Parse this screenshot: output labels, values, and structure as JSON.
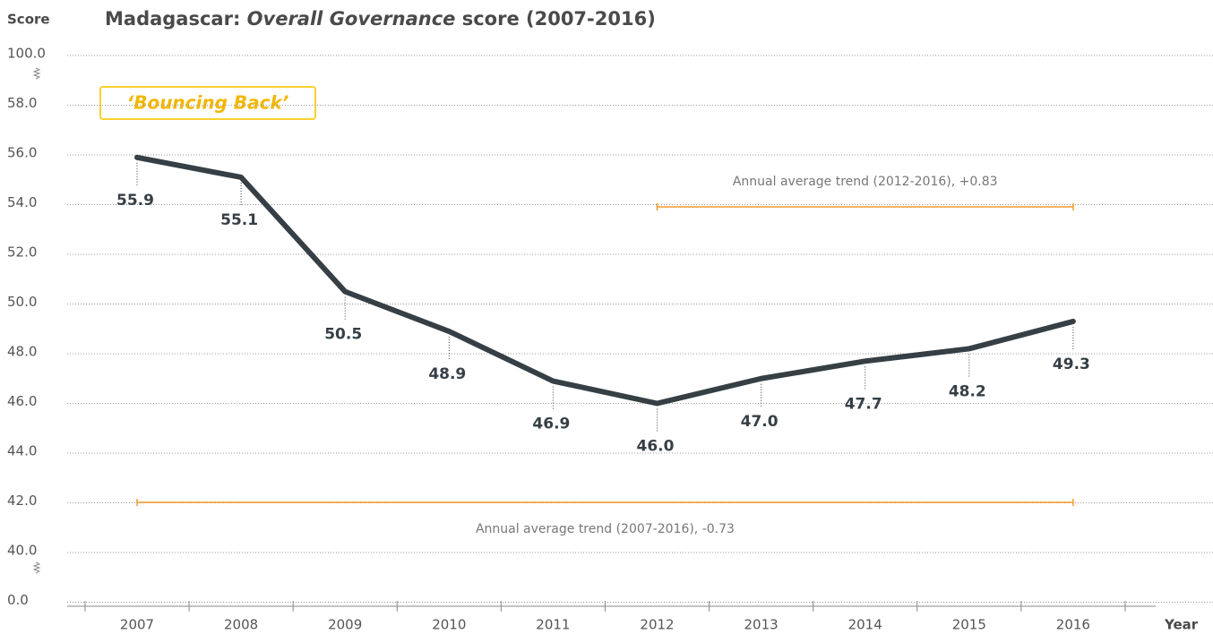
{
  "chart_data": {
    "type": "line",
    "title": [
      "Madagascar: ",
      "Overall Governance",
      " score (2007-2016)"
    ],
    "y_label": "Score",
    "x_label": "Year",
    "badge": "‘Bouncing Back’",
    "categories": [
      "2007",
      "2008",
      "2009",
      "2010",
      "2011",
      "2012",
      "2013",
      "2014",
      "2015",
      "2016"
    ],
    "series": [
      {
        "name": "Overall Governance",
        "color": "#353f45",
        "values": [
          55.9,
          55.1,
          50.5,
          48.9,
          46.9,
          46.0,
          47.0,
          47.7,
          48.2,
          49.3
        ],
        "value_labels": [
          "55.9",
          "55.1",
          "50.5",
          "48.9",
          "46.9",
          "46.0",
          "47.0",
          "47.7",
          "48.2",
          "49.3"
        ]
      }
    ],
    "ylim": [
      0,
      100
    ],
    "yticks": [
      {
        "value": 100,
        "label": "100.0"
      },
      {
        "value": 58,
        "label": "58.0"
      },
      {
        "value": 56,
        "label": "56.0"
      },
      {
        "value": 54,
        "label": "54.0"
      },
      {
        "value": 52,
        "label": "52.0"
      },
      {
        "value": 50,
        "label": "50.0"
      },
      {
        "value": 48,
        "label": "48.0"
      },
      {
        "value": 46,
        "label": "46.0"
      },
      {
        "value": 44,
        "label": "44.0"
      },
      {
        "value": 42,
        "label": "42.0"
      },
      {
        "value": 40,
        "label": "40.0"
      },
      {
        "value": 0,
        "label": "0.0"
      }
    ],
    "grid": true,
    "annotations": [
      {
        "text": "Annual average trend (2012-2016), +0.83",
        "start": 5,
        "end": 9,
        "color": "#f39a2b"
      },
      {
        "text": "Annual average trend (2007-2016), -0.73",
        "start": 0,
        "end": 9,
        "color": "#f39a2b"
      }
    ]
  }
}
